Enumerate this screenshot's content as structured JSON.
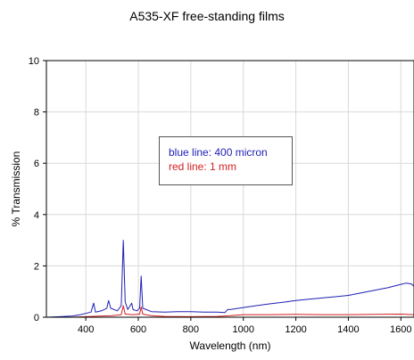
{
  "chart_data": {
    "type": "line",
    "title": "A535-XF free-standing films",
    "xlabel": "Wavelength (nm)",
    "ylabel": "% Transmission",
    "xlim": [
      250,
      1650
    ],
    "ylim": [
      0,
      10
    ],
    "x_ticks": [
      400,
      600,
      800,
      1000,
      1200,
      1400,
      1600
    ],
    "y_ticks": [
      0,
      2,
      4,
      6,
      8,
      10
    ],
    "grid": true,
    "legend_placement": "upper-left inside plot (boxed text)",
    "legend": [
      {
        "text": "blue line:  400 micron",
        "color": "#1f1fb4"
      },
      {
        "text": "red line:  1 mm",
        "color": "#d42020"
      }
    ],
    "series": [
      {
        "name": "400 micron",
        "color": "#1f1fb4",
        "points": [
          [
            250,
            0.0
          ],
          [
            300,
            0.02
          ],
          [
            350,
            0.05
          ],
          [
            380,
            0.1
          ],
          [
            400,
            0.15
          ],
          [
            420,
            0.2
          ],
          [
            430,
            0.55
          ],
          [
            437,
            0.2
          ],
          [
            460,
            0.25
          ],
          [
            480,
            0.35
          ],
          [
            487,
            0.65
          ],
          [
            495,
            0.35
          ],
          [
            520,
            0.25
          ],
          [
            535,
            0.45
          ],
          [
            543,
            3.0
          ],
          [
            550,
            0.6
          ],
          [
            560,
            0.3
          ],
          [
            575,
            0.55
          ],
          [
            580,
            0.3
          ],
          [
            595,
            0.25
          ],
          [
            605,
            0.35
          ],
          [
            611,
            1.6
          ],
          [
            617,
            0.35
          ],
          [
            630,
            0.3
          ],
          [
            650,
            0.22
          ],
          [
            700,
            0.2
          ],
          [
            750,
            0.22
          ],
          [
            800,
            0.22
          ],
          [
            850,
            0.2
          ],
          [
            900,
            0.2
          ],
          [
            930,
            0.18
          ],
          [
            940,
            0.3
          ],
          [
            950,
            0.3
          ],
          [
            1000,
            0.38
          ],
          [
            1050,
            0.45
          ],
          [
            1100,
            0.52
          ],
          [
            1150,
            0.58
          ],
          [
            1200,
            0.65
          ],
          [
            1250,
            0.7
          ],
          [
            1300,
            0.75
          ],
          [
            1350,
            0.8
          ],
          [
            1400,
            0.85
          ],
          [
            1450,
            0.95
          ],
          [
            1500,
            1.05
          ],
          [
            1550,
            1.15
          ],
          [
            1600,
            1.28
          ],
          [
            1620,
            1.33
          ],
          [
            1640,
            1.3
          ],
          [
            1650,
            1.2
          ]
        ]
      },
      {
        "name": "1 mm",
        "color": "#d42020",
        "points": [
          [
            250,
            0.0
          ],
          [
            350,
            0.0
          ],
          [
            400,
            0.02
          ],
          [
            450,
            0.04
          ],
          [
            500,
            0.06
          ],
          [
            535,
            0.1
          ],
          [
            543,
            0.45
          ],
          [
            550,
            0.12
          ],
          [
            580,
            0.1
          ],
          [
            605,
            0.12
          ],
          [
            611,
            0.4
          ],
          [
            617,
            0.12
          ],
          [
            650,
            0.06
          ],
          [
            700,
            0.03
          ],
          [
            800,
            0.02
          ],
          [
            900,
            0.03
          ],
          [
            950,
            0.06
          ],
          [
            1000,
            0.1
          ],
          [
            1100,
            0.1
          ],
          [
            1200,
            0.11
          ],
          [
            1300,
            0.1
          ],
          [
            1400,
            0.1
          ],
          [
            1500,
            0.11
          ],
          [
            1600,
            0.12
          ],
          [
            1650,
            0.1
          ]
        ]
      }
    ]
  }
}
